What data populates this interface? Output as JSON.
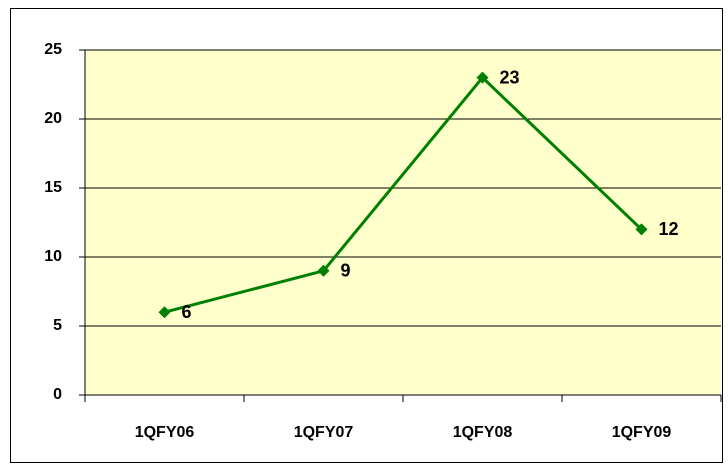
{
  "chart_data": {
    "type": "line",
    "categories": [
      "1QFY06",
      "1QFY07",
      "1QFY08",
      "1QFY09"
    ],
    "values": [
      6,
      9,
      23,
      12
    ],
    "color": "#008000",
    "ylim": [
      0,
      25
    ],
    "yticks": [
      0,
      5,
      10,
      15,
      20,
      25
    ],
    "grid": true
  }
}
